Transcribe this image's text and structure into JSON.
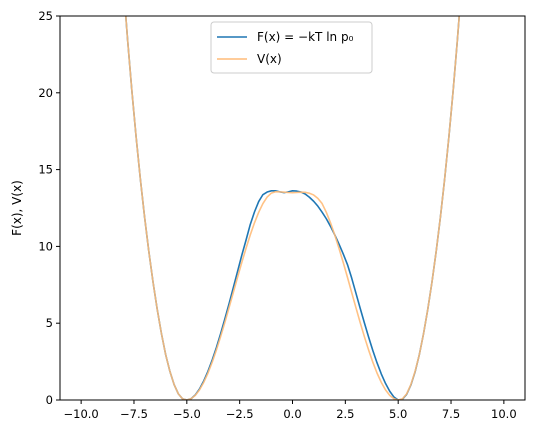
{
  "chart_data": {
    "type": "line",
    "title": "",
    "xlabel": "",
    "ylabel": "F(x), V(x)",
    "xlim": [
      -11,
      11
    ],
    "ylim": [
      0,
      25
    ],
    "xticks": [
      -10.0,
      -7.5,
      -5.0,
      -2.5,
      0.0,
      2.5,
      5.0,
      7.5,
      10.0
    ],
    "xtick_labels": [
      "−10.0",
      "−7.5",
      "−5.0",
      "−2.5",
      "0.0",
      "2.5",
      "5.0",
      "7.5",
      "10.0"
    ],
    "yticks": [
      0,
      5,
      10,
      15,
      20,
      25
    ],
    "ytick_labels": [
      "0",
      "5",
      "10",
      "15",
      "20",
      "25"
    ],
    "grid": false,
    "legend_position": "top-center",
    "x": [
      -8.0,
      -7.8,
      -7.6,
      -7.4,
      -7.2,
      -7.0,
      -6.8,
      -6.6,
      -6.4,
      -6.2,
      -6.0,
      -5.8,
      -5.6,
      -5.4,
      -5.2,
      -5.0,
      -4.8,
      -4.6,
      -4.4,
      -4.2,
      -4.0,
      -3.8,
      -3.6,
      -3.4,
      -3.2,
      -3.0,
      -2.8,
      -2.6,
      -2.4,
      -2.2,
      -2.0,
      -1.8,
      -1.6,
      -1.4,
      -1.2,
      -1.0,
      -0.8,
      -0.6,
      -0.4,
      -0.2,
      0.0,
      0.2,
      0.4,
      0.6,
      0.8,
      1.0,
      1.2,
      1.4,
      1.6,
      1.8,
      2.0,
      2.2,
      2.4,
      2.6,
      2.8,
      3.0,
      3.2,
      3.4,
      3.6,
      3.8,
      4.0,
      4.2,
      4.4,
      4.6,
      4.8,
      5.0,
      5.2,
      5.4,
      5.6,
      5.8,
      6.0,
      6.2,
      6.4,
      6.6,
      6.8,
      7.0,
      7.2,
      7.4,
      7.6,
      7.8,
      8.0
    ],
    "series": [
      {
        "name": "F(x) = −kT ln p₀",
        "color": "#1f77b4",
        "values": [
          27.0,
          23.42,
          20.14,
          17.14,
          14.41,
          11.93,
          9.7,
          7.69,
          5.9,
          4.32,
          2.95,
          1.86,
          1.0,
          0.4,
          0.07,
          0.0,
          0.08,
          0.33,
          0.72,
          1.24,
          1.87,
          2.6,
          3.42,
          4.32,
          5.28,
          6.28,
          7.32,
          8.37,
          9.42,
          10.4,
          11.42,
          12.24,
          12.92,
          13.37,
          13.54,
          13.62,
          13.62,
          13.55,
          13.5,
          13.55,
          13.62,
          13.6,
          13.54,
          13.41,
          13.2,
          12.94,
          12.62,
          12.23,
          11.8,
          11.3,
          10.75,
          10.15,
          9.51,
          8.82,
          7.94,
          6.96,
          5.98,
          5.03,
          4.1,
          3.22,
          2.42,
          1.7,
          1.08,
          0.57,
          0.19,
          0.0,
          0.05,
          0.37,
          0.97,
          1.83,
          2.95,
          4.32,
          5.9,
          7.69,
          9.7,
          11.93,
          14.41,
          17.14,
          20.14,
          23.42,
          27.0
        ]
      },
      {
        "name": "V(x)",
        "color": "#ffbb78",
        "values": [
          27.0,
          23.42,
          20.14,
          17.14,
          14.41,
          11.93,
          9.7,
          7.69,
          5.9,
          4.32,
          2.95,
          1.86,
          1.0,
          0.4,
          0.07,
          0.0,
          0.08,
          0.3,
          0.66,
          1.15,
          1.75,
          2.46,
          3.26,
          4.13,
          5.05,
          6.02,
          7.0,
          7.99,
          8.95,
          9.87,
          10.74,
          11.53,
          12.22,
          12.79,
          13.21,
          13.47,
          13.56,
          13.55,
          13.53,
          13.51,
          13.5,
          13.51,
          13.53,
          13.52,
          13.46,
          13.35,
          13.13,
          12.79,
          12.22,
          11.53,
          10.74,
          9.87,
          8.95,
          7.99,
          7.0,
          6.02,
          5.05,
          4.13,
          3.26,
          2.46,
          1.75,
          1.15,
          0.66,
          0.3,
          0.08,
          0.0,
          0.07,
          0.4,
          1.0,
          1.86,
          2.95,
          4.32,
          5.9,
          7.69,
          9.7,
          11.93,
          14.41,
          17.14,
          20.14,
          23.42,
          27.0
        ]
      }
    ]
  }
}
